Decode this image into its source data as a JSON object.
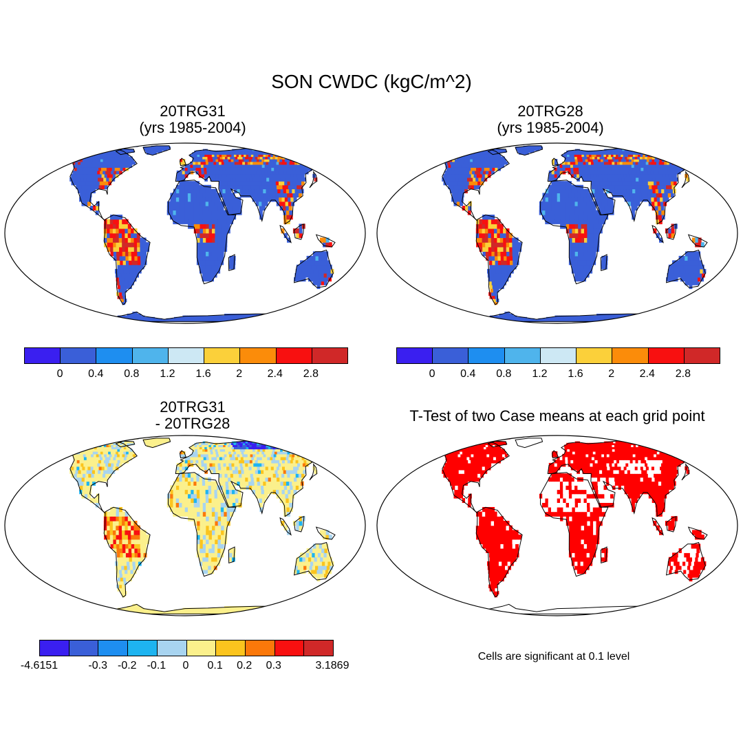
{
  "title": "SON CWDC (kgC/m^2)",
  "panels": [
    {
      "title_line1": "20TRG31",
      "title_line2": "(yrs 1985-2004)"
    },
    {
      "title_line1": "20TRG28",
      "title_line2": "(yrs 1985-2004)"
    },
    {
      "title_line1": "20TRG31",
      "title_line2": "- 20TRG28"
    },
    {
      "title_line1": "T-Test of two Case means at each grid point",
      "note": "Cells are significant at 0.1 level"
    }
  ],
  "colorbars": {
    "mean": {
      "colors": [
        "#3a1ff0",
        "#3a5fd8",
        "#1e8ef0",
        "#4fb4ec",
        "#cde8f4",
        "#fbd03a",
        "#fb8c0a",
        "#f81010",
        "#d02828"
      ],
      "ticks": [
        "0",
        "0.4",
        "0.8",
        "1.2",
        "1.6",
        "2",
        "2.4",
        "2.8"
      ]
    },
    "diff": {
      "colors": [
        "#3a1ff0",
        "#3a5fd8",
        "#1e8ef0",
        "#1eb4f0",
        "#a8d4f0",
        "#fbf08c",
        "#fbc41e",
        "#fb780a",
        "#f81010",
        "#d02828"
      ],
      "ticks": [
        "-4.6151",
        "-0.3",
        "-0.2",
        "-0.1",
        "0",
        "0.1",
        "0.2",
        "0.3",
        "3.1869"
      ]
    },
    "ttest": {
      "colors": [
        "#ff0000",
        "#ffffff"
      ]
    }
  }
}
